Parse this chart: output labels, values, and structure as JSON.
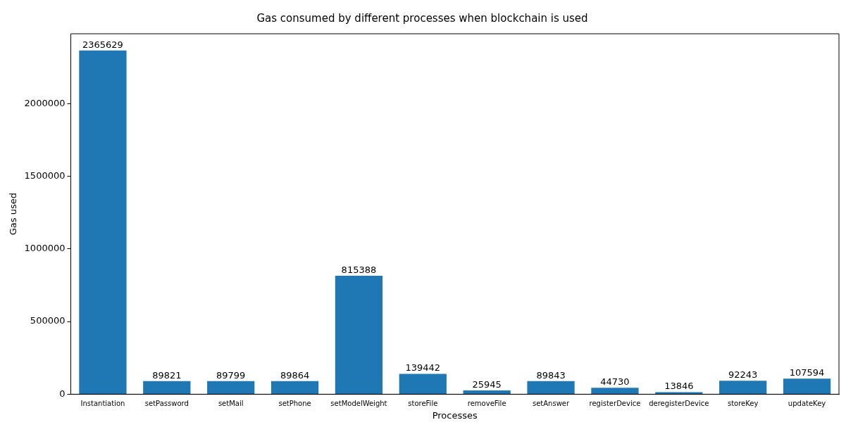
{
  "chart_data": {
    "type": "bar",
    "title": "Gas consumed by different processes when blockchain is used",
    "xlabel": "Processes",
    "ylabel": "Gas used",
    "categories": [
      "Instantiation",
      "setPassword",
      "setMail",
      "setPhone",
      "setModelWeight",
      "storeFile",
      "removeFile",
      "setAnswer",
      "registerDevice",
      "deregisterDevice",
      "storeKey",
      "updateKey"
    ],
    "values": [
      2365629,
      89821,
      89799,
      89864,
      815388,
      139442,
      25945,
      89843,
      44730,
      13846,
      92243,
      107594
    ],
    "color": "#1f77b4",
    "ylim": [
      0,
      2480000
    ],
    "yticks": [
      0,
      500000,
      1000000,
      1500000,
      2000000
    ],
    "grid": false,
    "data_labels": true
  }
}
